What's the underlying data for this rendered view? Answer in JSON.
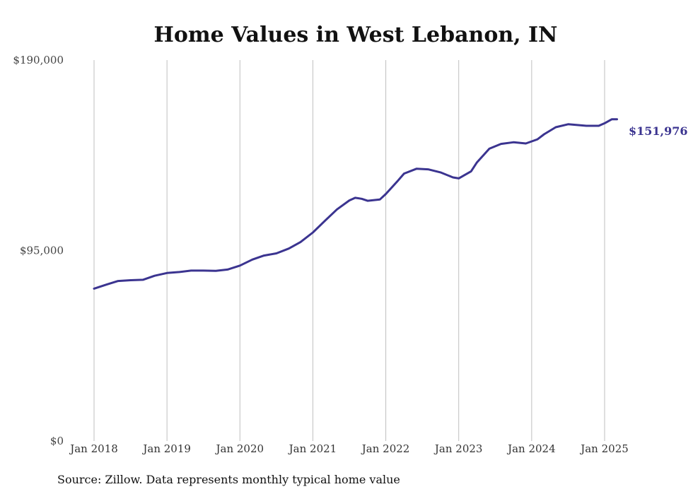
{
  "chart_data": {
    "type": "line",
    "title": "Home Values in West Lebanon, IN",
    "xlabel": "",
    "ylabel": "",
    "ylim": [
      0,
      190000
    ],
    "y_ticks": [
      {
        "value": 0,
        "label": "$0"
      },
      {
        "value": 95000,
        "label": "$95,000"
      },
      {
        "value": 190000,
        "label": "$190,000"
      }
    ],
    "x_ticks": [
      {
        "value": 2018,
        "label": "Jan 2018"
      },
      {
        "value": 2019,
        "label": "Jan 2019"
      },
      {
        "value": 2020,
        "label": "Jan 2020"
      },
      {
        "value": 2021,
        "label": "Jan 2021"
      },
      {
        "value": 2022,
        "label": "Jan 2022"
      },
      {
        "value": 2023,
        "label": "Jan 2023"
      },
      {
        "value": 2024,
        "label": "Jan 2024"
      },
      {
        "value": 2025,
        "label": "Jan 2025"
      }
    ],
    "grid": "vertical",
    "line_color": "#3b3490",
    "end_label": "$151,976",
    "source": "Source: Zillow. Data represents monthly typical home value",
    "series": [
      {
        "points": [
          [
            2018.0,
            76000
          ],
          [
            2018.17,
            78000
          ],
          [
            2018.33,
            79800
          ],
          [
            2018.5,
            80200
          ],
          [
            2018.67,
            80400
          ],
          [
            2018.83,
            82400
          ],
          [
            2019.0,
            83800
          ],
          [
            2019.17,
            84300
          ],
          [
            2019.33,
            85000
          ],
          [
            2019.5,
            85000
          ],
          [
            2019.67,
            84900
          ],
          [
            2019.83,
            85500
          ],
          [
            2020.0,
            87500
          ],
          [
            2020.17,
            90500
          ],
          [
            2020.33,
            92500
          ],
          [
            2020.5,
            93600
          ],
          [
            2020.67,
            96000
          ],
          [
            2020.83,
            99200
          ],
          [
            2021.0,
            104000
          ],
          [
            2021.17,
            110000
          ],
          [
            2021.33,
            115500
          ],
          [
            2021.5,
            120000
          ],
          [
            2021.58,
            121300
          ],
          [
            2021.67,
            120800
          ],
          [
            2021.75,
            119800
          ],
          [
            2021.92,
            120500
          ],
          [
            2022.0,
            123200
          ],
          [
            2022.17,
            130000
          ],
          [
            2022.25,
            133400
          ],
          [
            2022.42,
            135800
          ],
          [
            2022.58,
            135500
          ],
          [
            2022.75,
            134000
          ],
          [
            2022.92,
            131500
          ],
          [
            2023.0,
            131000
          ],
          [
            2023.17,
            134500
          ],
          [
            2023.25,
            139000
          ],
          [
            2023.42,
            145800
          ],
          [
            2023.58,
            148200
          ],
          [
            2023.75,
            149000
          ],
          [
            2023.92,
            148400
          ],
          [
            2024.08,
            150500
          ],
          [
            2024.17,
            153000
          ],
          [
            2024.33,
            156500
          ],
          [
            2024.5,
            158000
          ],
          [
            2024.75,
            157200
          ],
          [
            2024.92,
            157200
          ],
          [
            2025.0,
            158500
          ],
          [
            2025.1,
            160500
          ],
          [
            2025.17,
            151976
          ]
        ]
      }
    ]
  }
}
